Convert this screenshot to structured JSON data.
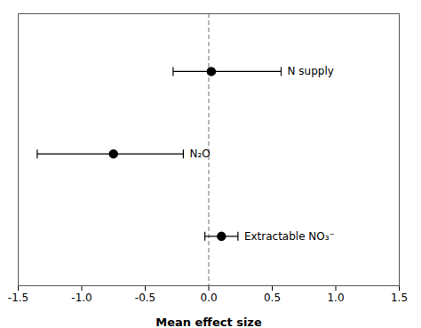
{
  "chart_data": {
    "type": "errorbar",
    "xlabel": "Mean effect size",
    "labels": [
      "N supply",
      "N₂O",
      "Extractable NO₃⁻"
    ],
    "x": [
      0.02,
      -0.75,
      0.1
    ],
    "y": [
      3,
      2,
      1
    ],
    "xerr_lo": [
      0.3,
      0.6,
      0.13
    ],
    "xerr_hi": [
      0.55,
      0.55,
      0.13
    ],
    "xlim": [
      -1.5,
      1.5
    ],
    "xticks": [
      -1.5,
      {
        "value": -1.0,
        "label": "-1.0"
      },
      -0.5,
      {
        "value": 0.0,
        "label": "0.0"
      },
      0.5,
      {
        "value": 1.0,
        "label": "1.0"
      },
      1.5
    ],
    "ylim": [
      0.4,
      3.7
    ],
    "tick_labels": "x",
    "color": "#000000",
    "reference_line": {
      "x": 0.0,
      "color": "#888888",
      "line_style": "dashed"
    }
  }
}
